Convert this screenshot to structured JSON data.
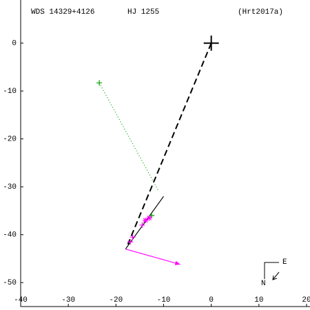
{
  "chart_data": {
    "type": "scatter",
    "title": "WDS 14329+4126",
    "subtitle": "HJ 1255",
    "reference": "(Hrt2017a)",
    "compass": {
      "north": "N",
      "east": "E"
    },
    "xlim": [
      -40,
      20
    ],
    "ylim": [
      -55,
      9
    ],
    "xticks": [
      -40,
      -30,
      -20,
      -10,
      0,
      10,
      20
    ],
    "yticks": [
      0,
      -10,
      -20,
      -30,
      -40,
      -50
    ],
    "series": [
      {
        "color": "#000000",
        "marker": "bigplus",
        "x": [
          0
        ],
        "values": [
          0
        ]
      },
      {
        "color": "#00a000",
        "marker": "plus",
        "x": [
          -23.5,
          -12.5
        ],
        "values": [
          -8.3,
          -36
        ]
      },
      {
        "color": "#ff00ff",
        "marker": "plus",
        "x": [
          -14.5,
          -17,
          -16.5
        ],
        "values": [
          -38,
          -41.5,
          -40.5
        ]
      },
      {
        "color": "#ff00ff",
        "marker": "star",
        "x": [
          -13,
          -13.8
        ],
        "values": [
          -36.5,
          -37
        ]
      }
    ],
    "lines": [
      {
        "style": "dashed",
        "color": "#000000",
        "x": [
          0,
          -17.5
        ],
        "values": [
          0,
          -42
        ]
      },
      {
        "style": "dotted",
        "color": "#00a000",
        "x": [
          -23.5,
          -11
        ],
        "values": [
          -8.3,
          -31
        ]
      },
      {
        "style": "solid",
        "color": "#000000",
        "x": [
          -18,
          -10
        ],
        "values": [
          -43,
          -32
        ]
      },
      {
        "style": "arrow",
        "color": "#ff00ff",
        "x": [
          -18,
          -6.5
        ],
        "values": [
          -43,
          -46.2
        ]
      }
    ]
  }
}
